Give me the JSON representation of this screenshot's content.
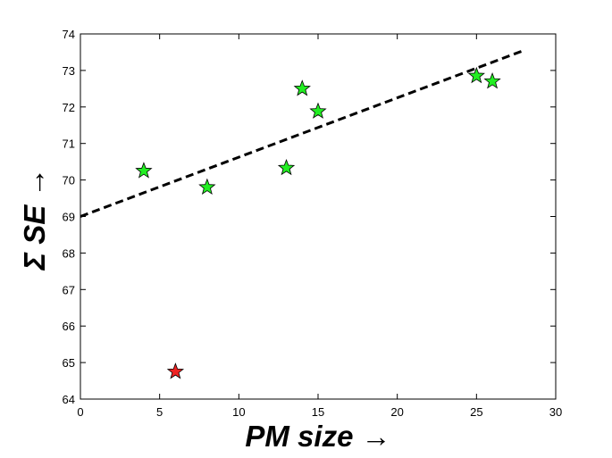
{
  "chart_data": {
    "type": "scatter",
    "title": "",
    "xlabel": "PM size →",
    "ylabel": "Σ SE →",
    "xlim": [
      0,
      30
    ],
    "ylim": [
      64,
      74
    ],
    "xticks": [
      0,
      5,
      10,
      15,
      20,
      25,
      30
    ],
    "yticks": [
      64,
      65,
      66,
      67,
      68,
      69,
      70,
      71,
      72,
      73,
      74
    ],
    "grid": false,
    "marker": "star",
    "series": [
      {
        "color": "#22ee22",
        "points": [
          {
            "x": 4,
            "y": 70.25
          },
          {
            "x": 8,
            "y": 69.8
          },
          {
            "x": 13,
            "y": 70.33
          },
          {
            "x": 14,
            "y": 72.5
          },
          {
            "x": 15,
            "y": 71.88
          },
          {
            "x": 25,
            "y": 72.85
          },
          {
            "x": 26,
            "y": 72.7
          }
        ]
      },
      {
        "color": "#ee2222",
        "points": [
          {
            "x": 6,
            "y": 64.75
          }
        ]
      }
    ],
    "trendline": {
      "style": "dashed",
      "color": "#000000",
      "from": {
        "x": 0,
        "y": 69.0
      },
      "to": {
        "x": 28,
        "y": 73.55
      }
    }
  }
}
